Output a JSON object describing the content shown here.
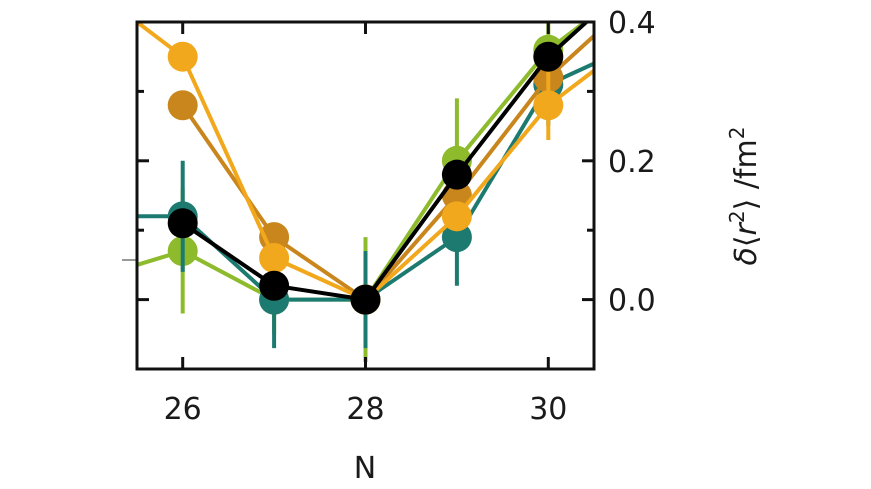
{
  "chart_data": {
    "type": "line",
    "title": "",
    "xlabel": "N",
    "ylabel": "δ⟨r²⟩ /fm²",
    "ylabel_parts": {
      "delta": "δ",
      "open": "⟨",
      "r": "r",
      "sup": "2",
      "close": "⟩ /fm",
      "unit_sup": "2"
    },
    "xlim": [
      25.5,
      30.5
    ],
    "ylim": [
      -0.1,
      0.4
    ],
    "xticks": [
      26,
      28,
      30
    ],
    "xtick_labels": [
      "26",
      "28",
      "30"
    ],
    "yticks": [
      0.0,
      0.2,
      0.4
    ],
    "ytick_labels": [
      "0.0",
      "0.2",
      "0.4"
    ],
    "ytick_minor": [
      -0.1,
      0.1,
      0.3
    ],
    "yaxis_side": "right",
    "grid": false,
    "legend": "none",
    "series": [
      {
        "color": "#8dbb2c",
        "x": [
          25.5,
          26,
          27,
          28,
          29,
          30,
          30.5
        ],
        "y": [
          0.05,
          0.07,
          0.0,
          0.0,
          0.2,
          0.36,
          0.41
        ],
        "err": [
          null,
          0.09,
          0.05,
          0.09,
          0.09,
          0.06,
          null
        ],
        "marker_points": [
          1,
          2,
          3,
          4,
          5
        ]
      },
      {
        "color": "#1d7a70",
        "x": [
          25.5,
          26,
          27,
          28,
          29,
          30,
          30.5
        ],
        "y": [
          0.12,
          0.12,
          0.0,
          0.0,
          0.09,
          0.31,
          0.34
        ],
        "err": [
          null,
          0.08,
          0.07,
          0.07,
          0.07,
          0.06,
          null
        ],
        "marker_points": [
          1,
          2,
          3,
          4,
          5
        ]
      },
      {
        "color": "#c8861d",
        "x": [
          26,
          27,
          28,
          29,
          30,
          30.5
        ],
        "y": [
          0.28,
          0.09,
          0.0,
          0.15,
          0.32,
          0.38
        ],
        "err": [
          null,
          null,
          null,
          null,
          null,
          null
        ],
        "marker_points": [
          0,
          1,
          2,
          3,
          4
        ]
      },
      {
        "color": "#f2a81c",
        "x": [
          25.5,
          26,
          27,
          28,
          29,
          30,
          30.5
        ],
        "y": [
          0.4,
          0.35,
          0.06,
          0.0,
          0.12,
          0.28,
          0.33
        ],
        "err": [
          null,
          null,
          null,
          null,
          null,
          0.05,
          null
        ],
        "marker_points": [
          1,
          2,
          3,
          4,
          5
        ]
      },
      {
        "color": "#000000",
        "x": [
          26,
          27,
          28,
          29,
          30,
          30.5
        ],
        "y": [
          0.11,
          0.02,
          0.0,
          0.18,
          0.35,
          0.41
        ],
        "err": [
          null,
          null,
          null,
          null,
          null,
          null
        ],
        "marker_points": [
          0,
          1,
          2,
          3,
          4
        ]
      }
    ]
  }
}
